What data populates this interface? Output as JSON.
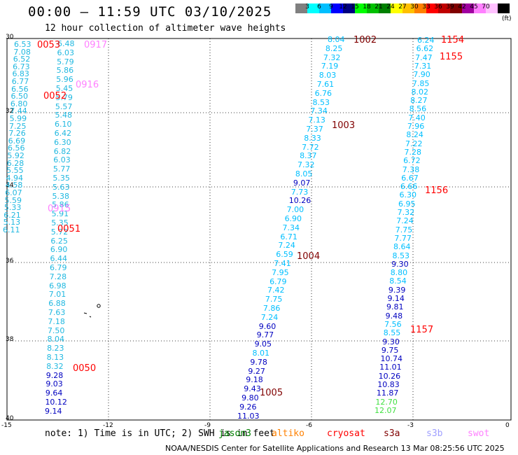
{
  "header": {
    "title": "00:00 – 11:59 UTC 03/10/2025",
    "subtitle": "12 hour collection of altimeter wave heights"
  },
  "color_scale": {
    "unit_label": "(ft)",
    "colors": [
      "#808080",
      "#00ffff",
      "#00bfff",
      "#0000ff",
      "#000080",
      "#00ff00",
      "#00c000",
      "#008000",
      "#ffff00",
      "#ffc000",
      "#ff8000",
      "#ff0000",
      "#c00000",
      "#800000",
      "#a000a0",
      "#ff80ff",
      "#ffc0ff",
      "#000000"
    ],
    "labels": [
      "3",
      "6",
      "9",
      "12",
      "15",
      "18",
      "21",
      "24",
      "27",
      "30",
      "33",
      "36",
      "39",
      "42",
      "45",
      "70"
    ]
  },
  "axes": {
    "y_ticks": [
      "30",
      "32",
      "34",
      "36",
      "38",
      "40"
    ],
    "x_ticks": [
      "-15",
      "-12",
      "-9",
      "-6",
      "-3",
      "0"
    ]
  },
  "passes": [
    {
      "label": "0053",
      "color": "#ff0000"
    },
    {
      "label": "0917",
      "color": "#ff80ff"
    },
    {
      "label": "0916",
      "color": "#ff80ff"
    },
    {
      "label": "0052",
      "color": "#ff0000"
    },
    {
      "label": "0915",
      "color": "#ff80ff"
    },
    {
      "label": "0051",
      "color": "#ff0000"
    },
    {
      "label": "0050",
      "color": "#ff0000"
    },
    {
      "label": "1002",
      "color": "#800000"
    },
    {
      "label": "1003",
      "color": "#800000"
    },
    {
      "label": "1004",
      "color": "#800000"
    },
    {
      "label": "1005",
      "color": "#800000"
    },
    {
      "label": "1154",
      "color": "#ff0000"
    },
    {
      "label": "1155",
      "color": "#ff0000"
    },
    {
      "label": "1156",
      "color": "#ff0000"
    },
    {
      "label": "1157",
      "color": "#ff0000"
    }
  ],
  "tracks": {
    "track_a": [
      "6.53",
      "7.08",
      "6.52",
      "6.73",
      "6.83",
      "6.77",
      "6.56",
      "6.50",
      "6.80",
      "7.44",
      "5.99",
      "7.25",
      "7.26",
      "6.69",
      "6.56",
      "5.92",
      "6.28",
      "5.55",
      "4.94",
      "4.58",
      "6.07",
      "5.59",
      "5.33",
      "6.21",
      "5.13",
      "6.11"
    ],
    "track_b": [
      "6.48",
      "6.03",
      "5.79",
      "5.86",
      "5.96",
      "5.45",
      "5.79",
      "5.57",
      "5.48",
      "6.10",
      "6.42",
      "6.30",
      "6.82",
      "6.03",
      "5.77",
      "5.35",
      "5.63",
      "5.38",
      "5.86",
      "5.91",
      "5.35",
      "5.72",
      "6.25",
      "6.90",
      "6.44",
      "6.79",
      "7.28",
      "6.98",
      "7.01",
      "6.88",
      "7.63",
      "7.18",
      "7.50",
      "8.04",
      "8.23",
      "8.13",
      "8.32",
      "9.28",
      "9.03",
      "9.64",
      "10.12",
      "9.14"
    ],
    "track_c": [
      "8.04",
      "8.25",
      "7.32",
      "7.19",
      "8.03",
      "7.61",
      "6.76",
      "8.53",
      "7.34",
      "7.13",
      "7.37",
      "8.33",
      "7.72",
      "8.37",
      "7.32",
      "8.05",
      "9.07",
      "7.73",
      "10.26",
      "7.00",
      "6.90",
      "7.34",
      "6.71",
      "7.24",
      "6.59",
      "7.41",
      "7.95",
      "6.79",
      "7.42",
      "7.75",
      "7.86",
      "7.24",
      "9.60",
      "9.77",
      "9.05",
      "8.01",
      "9.78",
      "9.27",
      "9.18",
      "9.43",
      "9.80",
      "9.26",
      "11.03"
    ],
    "track_d": [
      "6.24",
      "6.62",
      "7.47",
      "7.31",
      "7.90",
      "7.85",
      "8.02",
      "8.27",
      "8.56",
      "7.40",
      "7.96",
      "8.24",
      "7.22",
      "7.28",
      "6.72",
      "7.38",
      "6.67",
      "6.66",
      "6.30",
      "6.95",
      "7.32",
      "7.24",
      "7.75",
      "7.77",
      "8.64",
      "8.53",
      "9.30",
      "8.80",
      "8.54",
      "9.39",
      "9.14",
      "9.81",
      "9.48",
      "7.56",
      "8.55",
      "9.30",
      "9.75",
      "10.74",
      "11.01",
      "10.26",
      "10.83",
      "11.87",
      "12.70",
      "12.07"
    ]
  },
  "note": {
    "text": "note: 1) Time is in UTC; 2) SWH is in feet",
    "legend": [
      {
        "name": "jason3",
        "color": "#008000"
      },
      {
        "name": "altiko",
        "color": "#ff8000"
      },
      {
        "name": "cryosat",
        "color": "#ff0000"
      },
      {
        "name": "s3a",
        "color": "#800000"
      },
      {
        "name": "s3b",
        "color": "#a0a0ff"
      },
      {
        "name": "swot",
        "color": "#ff80ff"
      }
    ]
  },
  "footer": {
    "text": "NOAA/NESDIS Center for Satellite Applications and Research   13 Mar 08:25:56 UTC 2025"
  }
}
